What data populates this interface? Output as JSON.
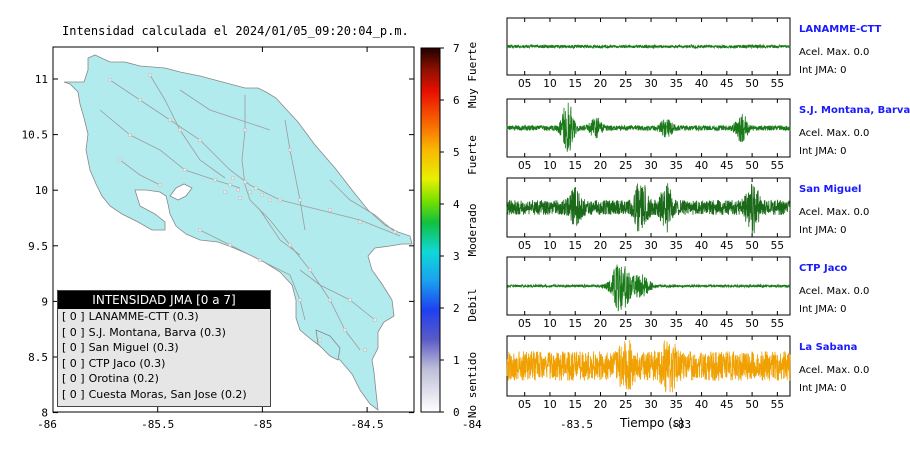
{
  "title": "Intensidad calculada el 2024/01/05_09:20:04_p.m.",
  "map": {
    "x_ticks": [
      "-86",
      "-85.5",
      "-85",
      "-84.5",
      "-84",
      "-83.5",
      "-83"
    ],
    "y_ticks": [
      "11",
      "10.5",
      "10",
      "9.5",
      "9",
      "8.5",
      "8"
    ],
    "land_color": "#b2ebee",
    "road_color": "#a8a8a8"
  },
  "legend": {
    "header": "INTENSIDAD JMA [0 a 7]",
    "rows": [
      {
        "value": "[ 0 ]",
        "label": "LANAMME-CTT (0.3)"
      },
      {
        "value": "[ 0 ]",
        "label": "S.J. Montana, Barva (0.3)"
      },
      {
        "value": "[ 0 ]",
        "label": "San Miguel (0.3)"
      },
      {
        "value": "[ 0 ]",
        "label": "CTP Jaco (0.3)"
      },
      {
        "value": "[ 0 ]",
        "label": "Orotina (0.2)"
      },
      {
        "value": "[ 0 ]",
        "label": "Cuesta Moras, San Jose (0.2)"
      }
    ]
  },
  "colorbar": {
    "ticks": [
      "0",
      "1",
      "2",
      "3",
      "4",
      "5",
      "6",
      "7"
    ],
    "categories": [
      "No sentido",
      "Debil",
      "Moderado",
      "Fuerte",
      "Muy Fuerte"
    ]
  },
  "time_axis_label": "Tiempo (s)",
  "chart_data": [
    {
      "type": "line",
      "description_of_axes": "seismogram traces",
      "x_ticks": [
        5,
        10,
        15,
        20,
        25,
        30,
        35,
        40,
        45,
        50,
        55
      ],
      "traces": [
        {
          "name": "LANAMME-CTT",
          "acc": "Acel. Max. 0.0",
          "int": "Int JMA: 0",
          "color": "#1a7a1a",
          "amplitude": 0.06,
          "bursts": []
        },
        {
          "name": "S.J. Montana, Barva",
          "acc": "Acel. Max. 0.0",
          "int": "Int JMA: 0",
          "color": "#1a7a1a",
          "amplitude": 0.1,
          "bursts": [
            [
              13.5,
              1.0
            ],
            [
              19,
              0.35
            ],
            [
              33,
              0.3
            ],
            [
              48,
              0.5
            ]
          ]
        },
        {
          "name": "San Miguel",
          "acc": "Acel. Max. 0.0",
          "int": "Int JMA: 0",
          "color": "#1a6a1a",
          "amplitude": 0.28,
          "bursts": [
            [
              15,
              0.5
            ],
            [
              28,
              0.9
            ],
            [
              33,
              0.7
            ],
            [
              50,
              1.0
            ]
          ]
        },
        {
          "name": "CTP Jaco",
          "acc": "Acel. Max. 0.0",
          "int": "Int JMA: 0",
          "color": "#1a7a1a",
          "amplitude": 0.05,
          "bursts": [
            [
              24,
              1.0
            ],
            [
              28,
              0.4
            ]
          ]
        },
        {
          "name": "La Sabana",
          "acc": "Acel. Max. 0.0",
          "int": "Int JMA: 0",
          "color": "#f0a000",
          "amplitude": 0.55,
          "bursts": [
            [
              33.5,
              1.0
            ],
            [
              25,
              0.7
            ]
          ]
        }
      ]
    }
  ]
}
